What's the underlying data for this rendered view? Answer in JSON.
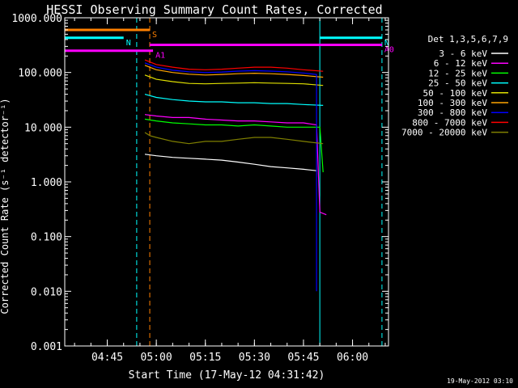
{
  "chart_data": {
    "type": "line",
    "title": "HESSI Observing Summary Count Rates, Corrected",
    "xlabel": "Start Time (17-May-12 04:31:42)",
    "ylabel": "Corrected Count Rate (s⁻¹ detector⁻¹)",
    "footer": "19-May-2012 03:10",
    "y_scale": "log",
    "ylim": [
      0.001,
      1000
    ],
    "xlim": [
      "04:32:00",
      "06:11:00"
    ],
    "x_ticks": [
      "04:45",
      "05:00",
      "05:15",
      "05:30",
      "05:45",
      "06:00"
    ],
    "y_ticks": [
      "0.001",
      "0.010",
      "0.100",
      "1.000",
      "10.000",
      "100.000",
      "1000.000"
    ],
    "legend_title": "Det 1,3,5,6,7,9",
    "legend_position": "right",
    "series": [
      {
        "name": "3 - 6 keV",
        "color": "#ffffff",
        "x": [
          "04:56:30",
          "05:00",
          "05:05",
          "05:10",
          "05:15",
          "05:20",
          "05:25",
          "05:30",
          "05:35",
          "05:40",
          "05:45",
          "05:49"
        ],
        "y": [
          3.2,
          3.0,
          2.8,
          2.7,
          2.6,
          2.5,
          2.3,
          2.1,
          1.9,
          1.8,
          1.7,
          1.6
        ]
      },
      {
        "name": "6 - 12 keV",
        "color": "#ff00ff",
        "x": [
          "04:56:30",
          "05:00",
          "05:05",
          "05:10",
          "05:15",
          "05:20",
          "05:25",
          "05:30",
          "05:35",
          "05:40",
          "05:45",
          "05:49",
          "05:50",
          "05:52"
        ],
        "y": [
          17,
          16,
          15,
          15,
          14,
          13.5,
          13,
          13,
          12.5,
          12,
          12,
          11,
          0.28,
          0.25
        ]
      },
      {
        "name": "12 - 25 keV",
        "color": "#00ff00",
        "x": [
          "04:56:30",
          "05:00",
          "05:05",
          "05:10",
          "05:15",
          "05:20",
          "05:25",
          "05:30",
          "05:35",
          "05:40",
          "05:45",
          "05:50",
          "05:51"
        ],
        "y": [
          14,
          13,
          12,
          11.5,
          11,
          11,
          10.5,
          11,
          10.5,
          10,
          10,
          10,
          1.5
        ]
      },
      {
        "name": "25 - 50 keV",
        "color": "#00ffff",
        "x": [
          "04:56:30",
          "05:00",
          "05:05",
          "05:10",
          "05:15",
          "05:20",
          "05:25",
          "05:30",
          "05:35",
          "05:40",
          "05:45",
          "05:51"
        ],
        "y": [
          40,
          35,
          32,
          30,
          29,
          29,
          28,
          28,
          27,
          27,
          26,
          25
        ]
      },
      {
        "name": "50 - 100 keV",
        "color": "#e0e000",
        "x": [
          "04:56:30",
          "05:00",
          "05:05",
          "05:10",
          "05:15",
          "05:20",
          "05:25",
          "05:30",
          "05:35",
          "05:40",
          "05:45",
          "05:51"
        ],
        "y": [
          90,
          75,
          68,
          63,
          62,
          63,
          64,
          65,
          64,
          63,
          62,
          58
        ]
      },
      {
        "name": "100 - 300 keV",
        "color": "#ffa500",
        "x": [
          "04:56:30",
          "05:00",
          "05:05",
          "05:10",
          "05:15",
          "05:20",
          "05:25",
          "05:30",
          "05:35",
          "05:40",
          "05:45",
          "05:51"
        ],
        "y": [
          135,
          112,
          100,
          93,
          90,
          92,
          95,
          97,
          95,
          92,
          88,
          82
        ]
      },
      {
        "name": "300 - 800 keV",
        "color": "#0000ff",
        "x": [
          "04:56:30",
          "05:00",
          "05:05",
          "05:10",
          "05:15",
          "05:20",
          "05:25",
          "05:30",
          "05:35",
          "05:40",
          "05:45",
          "05:49",
          "05:49"
        ],
        "y": [
          150,
          125,
          110,
          103,
          100,
          102,
          106,
          108,
          106,
          103,
          98,
          92,
          0.01
        ]
      },
      {
        "name": "800 - 7000 keV",
        "color": "#ff0000",
        "x": [
          "04:56:30",
          "05:00",
          "05:05",
          "05:10",
          "05:15",
          "05:20",
          "05:25",
          "05:30",
          "05:35",
          "05:40",
          "05:45",
          "05:51"
        ],
        "y": [
          170,
          140,
          125,
          115,
          112,
          115,
          120,
          125,
          125,
          120,
          112,
          105
        ]
      },
      {
        "name": "7000 - 20000 keV",
        "color": "#808000",
        "x": [
          "04:56:30",
          "04:58",
          "05:00",
          "05:05",
          "05:10",
          "05:15",
          "05:20",
          "05:25",
          "05:30",
          "05:35",
          "05:40",
          "05:45",
          "05:51"
        ],
        "y": [
          8.0,
          7.0,
          6.5,
          5.5,
          5.0,
          5.5,
          5.5,
          6.0,
          6.5,
          6.5,
          6.0,
          5.5,
          5.0
        ]
      }
    ],
    "state_bars": [
      {
        "label": "S",
        "color": "#ff8000",
        "y": 600,
        "x": [
          "04:32",
          "04:58"
        ]
      },
      {
        "label": "N",
        "color": "#00ffff",
        "y": 430,
        "x": [
          "04:32",
          "04:50"
        ]
      },
      {
        "label": "N",
        "color": "#00ffff",
        "y": 430,
        "x": [
          "05:50",
          "06:09"
        ]
      },
      {
        "label": "A0",
        "color": "#ff00ff",
        "y": 320,
        "x": [
          "04:58",
          "06:09"
        ]
      },
      {
        "label": "A1",
        "color": "#ff00ff",
        "y": 250,
        "x": [
          "04:32",
          "04:59"
        ]
      }
    ],
    "vertical_markers": [
      {
        "x": "04:32",
        "color": "#00ffff",
        "style": "solid"
      },
      {
        "x": "04:54",
        "color": "#00ffff",
        "style": "dashed"
      },
      {
        "x": "04:58",
        "color": "#ff8000",
        "style": "dashed"
      },
      {
        "x": "05:50",
        "color": "#00ffff",
        "style": "solid"
      },
      {
        "x": "06:09",
        "color": "#00ffff",
        "style": "dashed"
      }
    ]
  }
}
